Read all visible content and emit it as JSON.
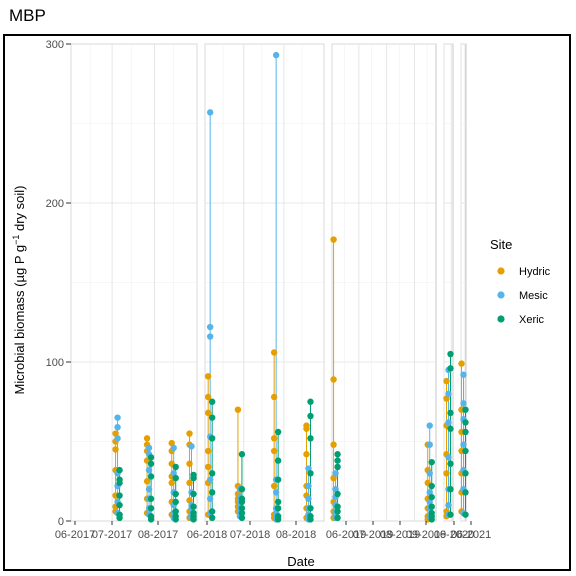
{
  "chart_data": {
    "type": "scatter",
    "title": "MBP",
    "xlabel": "Date",
    "ylabel": "Microbial biomass (µg P g",
    "ylabel_sup": "−1",
    "ylabel_suffix": " dry soil)",
    "ylim": [
      0,
      300
    ],
    "yticks": [
      0,
      100,
      200,
      300
    ],
    "xticks": [
      "06-2017",
      "07-2017",
      "08-2017",
      "06-2018",
      "07-2018",
      "08-2018",
      "06-2019",
      "07-2019",
      "08-2019",
      "09-2019",
      "06-2020",
      "06-2021"
    ],
    "grid": true,
    "legend": {
      "title": "Site",
      "placement": "right",
      "entries": [
        {
          "name": "Hydric",
          "color": "#E69F00"
        },
        {
          "name": "Mesic",
          "color": "#56B4E9"
        },
        {
          "name": "Xeric",
          "color": "#009E73"
        }
      ]
    },
    "panels": [
      {
        "year": "2017",
        "dates": [
          {
            "date": "2017-07-05",
            "Hydric": [
              55,
              50,
              45,
              32,
              16,
              9,
              6
            ],
            "Mesic": [
              65,
              59,
              52,
              30,
              22,
              12,
              5
            ],
            "Xeric": [
              32,
              26,
              24,
              16,
              10,
              4,
              2
            ]
          },
          {
            "date": "2017-07-28",
            "Hydric": [
              52,
              48,
              44,
              38,
              25,
              14,
              5
            ],
            "Mesic": [
              46,
              42,
              32,
              20,
              14,
              8,
              4
            ],
            "Xeric": [
              40,
              36,
              28,
              14,
              8,
              3,
              1
            ]
          },
          {
            "date": "2017-08-15",
            "Hydric": [
              49,
              44,
              36,
              28,
              24,
              12,
              4
            ],
            "Mesic": [
              46,
              30,
              18,
              10,
              5,
              3,
              2
            ],
            "Xeric": [
              34,
              27,
              17,
              12,
              6,
              3,
              1
            ]
          },
          {
            "date": "2017-08-28",
            "Hydric": [
              55,
              48,
              36,
              24,
              13,
              6,
              2
            ],
            "Mesic": [
              47,
              18,
              10,
              8,
              4,
              3,
              2
            ],
            "Xeric": [
              29,
              27,
              17,
              9,
              5,
              3,
              1
            ]
          }
        ]
      },
      {
        "year": "2018",
        "dates": [
          {
            "date": "2018-06-05",
            "Hydric": [
              91,
              78,
              68,
              44,
              34,
              24,
              4
            ],
            "Mesic": [
              257,
              122,
              116,
              53,
              26,
              14,
              5
            ],
            "Xeric": [
              75,
              65,
              52,
              30,
              18,
              6,
              2
            ]
          },
          {
            "date": "2018-06-28",
            "Hydric": [
              70,
              22,
              17,
              14,
              12,
              9,
              6
            ],
            "Mesic": [
              20,
              15,
              12,
              9,
              7,
              5,
              3
            ],
            "Xeric": [
              42,
              20,
              14,
              12,
              8,
              5,
              2
            ]
          },
          {
            "date": "2018-07-26",
            "Hydric": [
              106,
              78,
              52,
              44,
              22,
              4,
              2
            ],
            "Mesic": [
              293,
              26,
              18,
              8,
              5,
              3,
              1
            ],
            "Xeric": [
              56,
              38,
              26,
              12,
              8,
              3,
              1
            ]
          },
          {
            "date": "2018-08-20",
            "Hydric": [
              60,
              58,
              42,
              22,
              16,
              8,
              2
            ],
            "Mesic": [
              33,
              22,
              14,
              8,
              4,
              3,
              1
            ],
            "Xeric": [
              75,
              66,
              52,
              30,
              8,
              3,
              1
            ]
          }
        ]
      },
      {
        "year": "2019",
        "dates": [
          {
            "date": "2019-06-05",
            "Hydric": [
              177,
              89,
              48,
              27,
              12,
              6,
              2
            ],
            "Mesic": [
              30,
              20,
              15,
              10,
              6,
              4,
              2
            ],
            "Xeric": [
              42,
              38,
              34,
              17,
              9,
              6,
              2
            ]
          },
          {
            "date": "2019-09-18",
            "Hydric": [
              48,
              32,
              24,
              14,
              8,
              3,
              1
            ],
            "Mesic": [
              60,
              48,
              30,
              18,
              12,
              8,
              3
            ],
            "Xeric": [
              37,
              22,
              15,
              9,
              5,
              3,
              1
            ]
          }
        ]
      },
      {
        "year": "2020",
        "dates": [
          {
            "date": "2020-06-25",
            "Hydric": [
              88,
              77,
              60,
              42,
              30,
              6,
              3
            ],
            "Mesic": [
              95,
              80,
              62,
              40,
              20,
              10,
              4
            ],
            "Xeric": [
              105,
              96,
              68,
              58,
              36,
              20,
              4
            ]
          }
        ]
      },
      {
        "year": "2021",
        "dates": [
          {
            "date": "2021-06-25",
            "Hydric": [
              99,
              70,
              56,
              44,
              30,
              18,
              6
            ],
            "Mesic": [
              92,
              74,
              64,
              48,
              32,
              20,
              5
            ],
            "Xeric": [
              70,
              62,
              56,
              44,
              30,
              18,
              4
            ]
          }
        ]
      }
    ]
  }
}
